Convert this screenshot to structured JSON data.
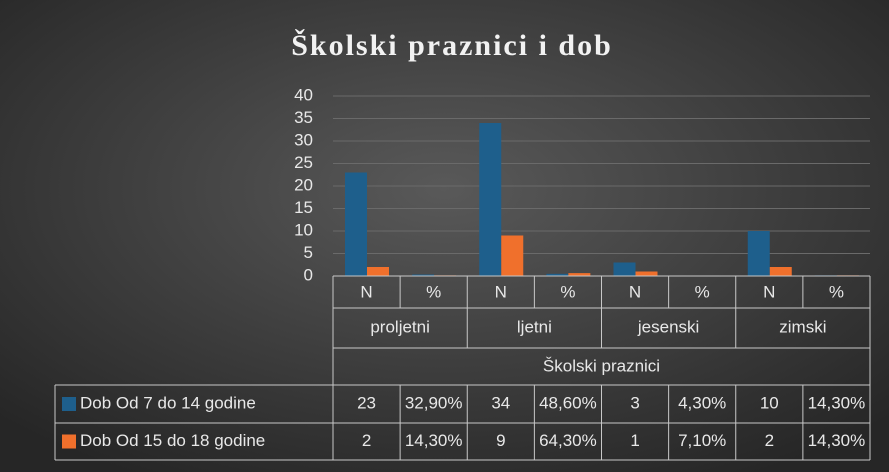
{
  "chart_data": {
    "type": "bar",
    "title": "Školski praznici i dob",
    "categories": [
      "N",
      "%",
      "N",
      "%",
      "N",
      "%",
      "N",
      "%"
    ],
    "category_groups": [
      "proljetni",
      "ljetni",
      "jesenski",
      "zimski"
    ],
    "x_label": "Školski praznici",
    "series": [
      {
        "name": "Dob Od 7 do 14 godine",
        "color": "#1e5f8c",
        "values": [
          23,
          0.329,
          34,
          0.486,
          3,
          0.043,
          10,
          0.143
        ],
        "value_labels": [
          "23",
          "32,90%",
          "34",
          "48,60%",
          "3",
          "4,30%",
          "10",
          "14,30%"
        ]
      },
      {
        "name": "Dob Od 15 do 18 godine",
        "color": "#f0702c",
        "values": [
          2,
          0.143,
          9,
          0.643,
          1,
          0.071,
          2,
          0.143
        ],
        "value_labels": [
          "2",
          "14,30%",
          "9",
          "64,30%",
          "1",
          "7,10%",
          "2",
          "14,30%"
        ]
      }
    ],
    "ylim": [
      0,
      40
    ],
    "yticks": [
      0,
      5,
      10,
      15,
      20,
      25,
      30,
      35,
      40
    ],
    "grid": true
  }
}
